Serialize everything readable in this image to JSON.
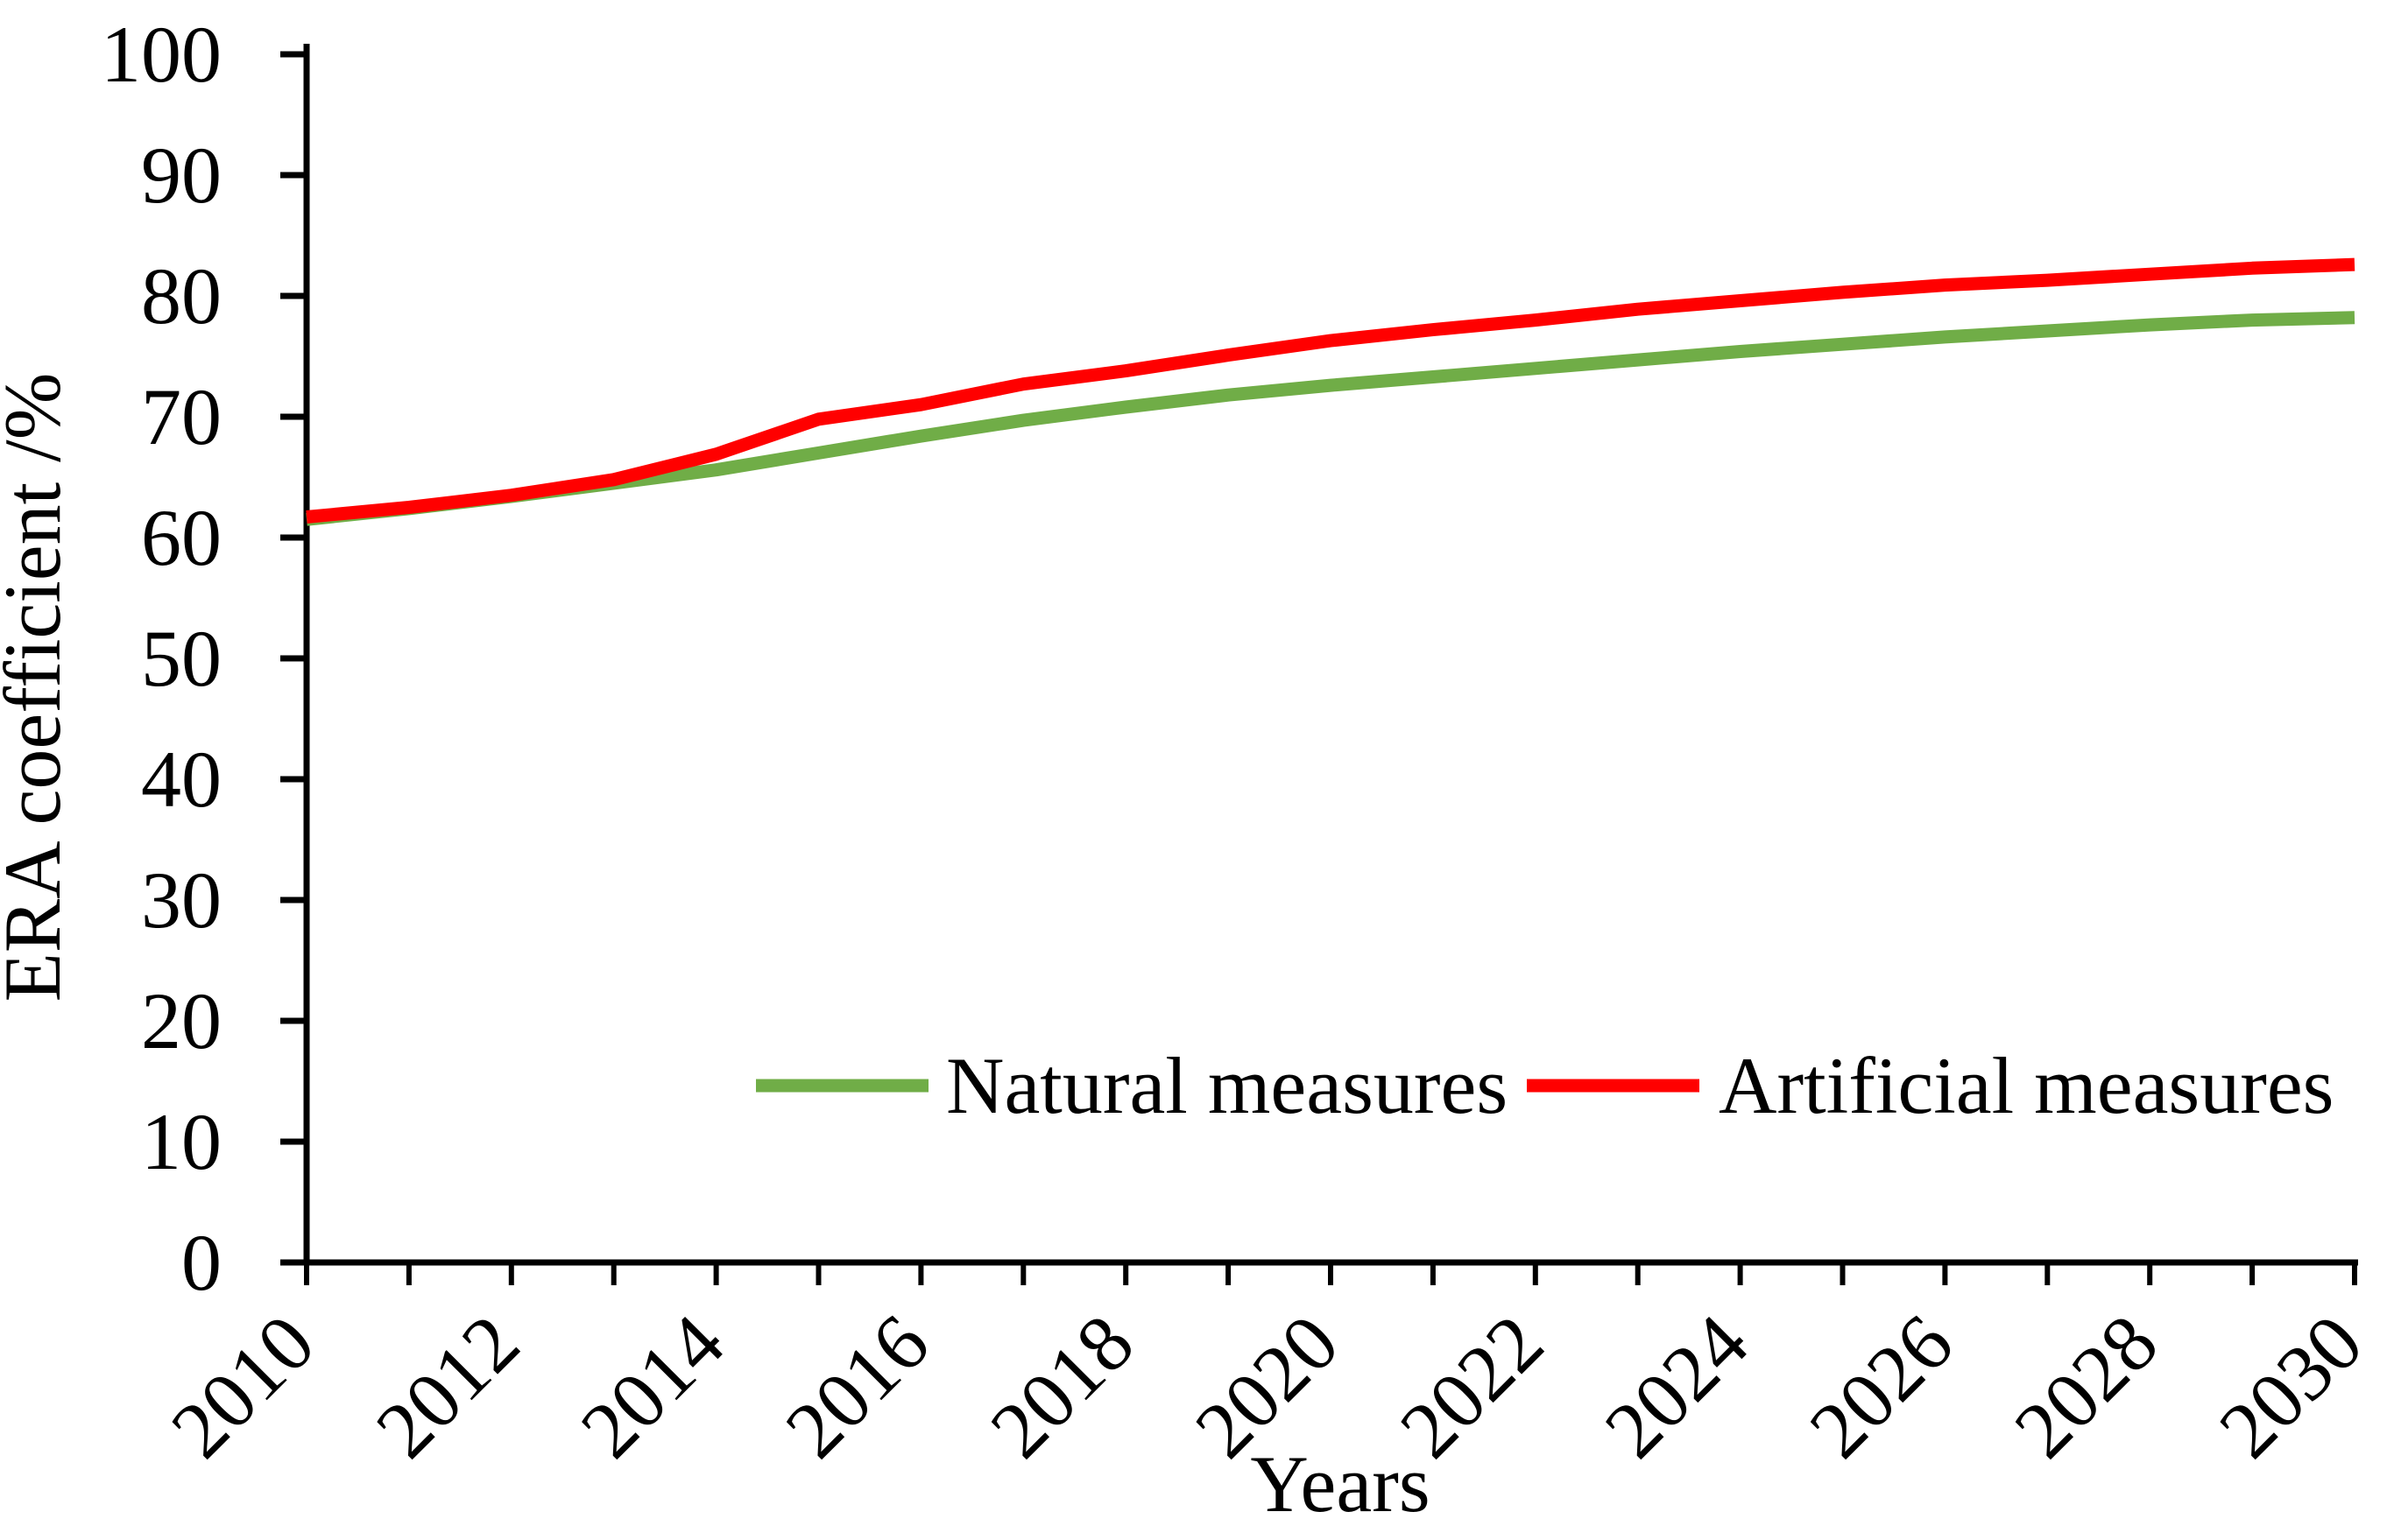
{
  "page": {
    "background": "#ffffff",
    "axis_color": "#000000"
  },
  "chart_data": {
    "type": "line",
    "title": "",
    "xlabel": "Years",
    "ylabel": "ERA coefficient /%",
    "x": [
      2010,
      2011,
      2012,
      2013,
      2014,
      2015,
      2016,
      2017,
      2018,
      2019,
      2020,
      2021,
      2022,
      2023,
      2024,
      2025,
      2026,
      2027,
      2028,
      2029,
      2030
    ],
    "series": [
      {
        "name": "Natural measures",
        "color": "#70ad47",
        "values": [
          61.5,
          62.4,
          63.4,
          64.5,
          65.6,
          67.0,
          68.4,
          69.7,
          70.8,
          71.8,
          72.6,
          73.3,
          74.0,
          74.7,
          75.4,
          76.0,
          76.6,
          77.1,
          77.6,
          78.0,
          78.2
        ]
      },
      {
        "name": "Artificial measures",
        "color": "#ff0000",
        "values": [
          61.7,
          62.5,
          63.5,
          64.8,
          66.9,
          69.8,
          71.0,
          72.7,
          73.8,
          75.1,
          76.3,
          77.2,
          78.0,
          78.9,
          79.6,
          80.3,
          80.9,
          81.3,
          81.8,
          82.3,
          82.6
        ]
      }
    ],
    "ylim": [
      0,
      100
    ],
    "xlim": [
      2010,
      2030
    ],
    "y_ticks": [
      0,
      10,
      20,
      30,
      40,
      50,
      60,
      70,
      80,
      90,
      100
    ],
    "x_tick_years": [
      2010,
      2011,
      2012,
      2013,
      2014,
      2015,
      2016,
      2017,
      2018,
      2019,
      2020,
      2021,
      2022,
      2023,
      2024,
      2025,
      2026,
      2027,
      2028,
      2029,
      2030
    ],
    "x_label_years": [
      2010,
      2012,
      2014,
      2016,
      2018,
      2020,
      2022,
      2024,
      2026,
      2028,
      2030
    ],
    "grid": false,
    "legend_position": "inside-bottom-center"
  }
}
